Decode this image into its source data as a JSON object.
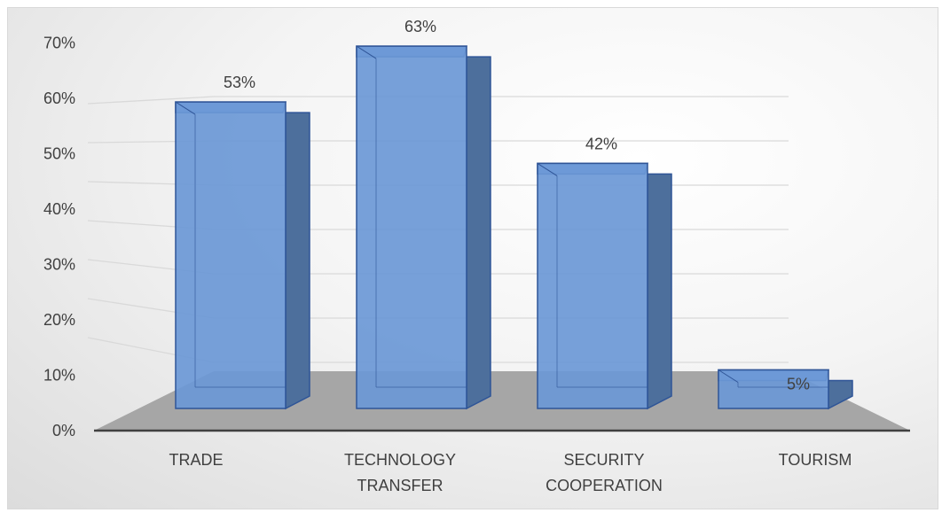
{
  "chart_data": {
    "type": "bar",
    "title": "",
    "xlabel": "",
    "ylabel": "",
    "categories": [
      [
        "TRADE"
      ],
      [
        "TECHNOLOGY",
        "TRANSFER"
      ],
      [
        "SECURITY",
        "COOPERATION"
      ],
      [
        "TOURISM"
      ]
    ],
    "values": [
      53,
      63,
      42,
      5
    ],
    "data_labels": [
      "53%",
      "63%",
      "42%",
      "5%"
    ],
    "ylim": [
      0,
      70
    ],
    "yticks": [
      0,
      10,
      20,
      30,
      40,
      50,
      60,
      70
    ],
    "ytick_labels": [
      "0%",
      "10%",
      "20%",
      "30%",
      "40%",
      "50%",
      "60%",
      "70%"
    ],
    "grid": true,
    "legend": "none",
    "style": "3d-column",
    "colors": {
      "bar_front": "#6b98d6",
      "bar_side": "#4d6f9c",
      "bar_top": "#83aae2",
      "bar_edge": "#2f5597",
      "floor": "#a6a6a6",
      "gridline": "#d9d9d9",
      "baseline": "#404040"
    }
  }
}
